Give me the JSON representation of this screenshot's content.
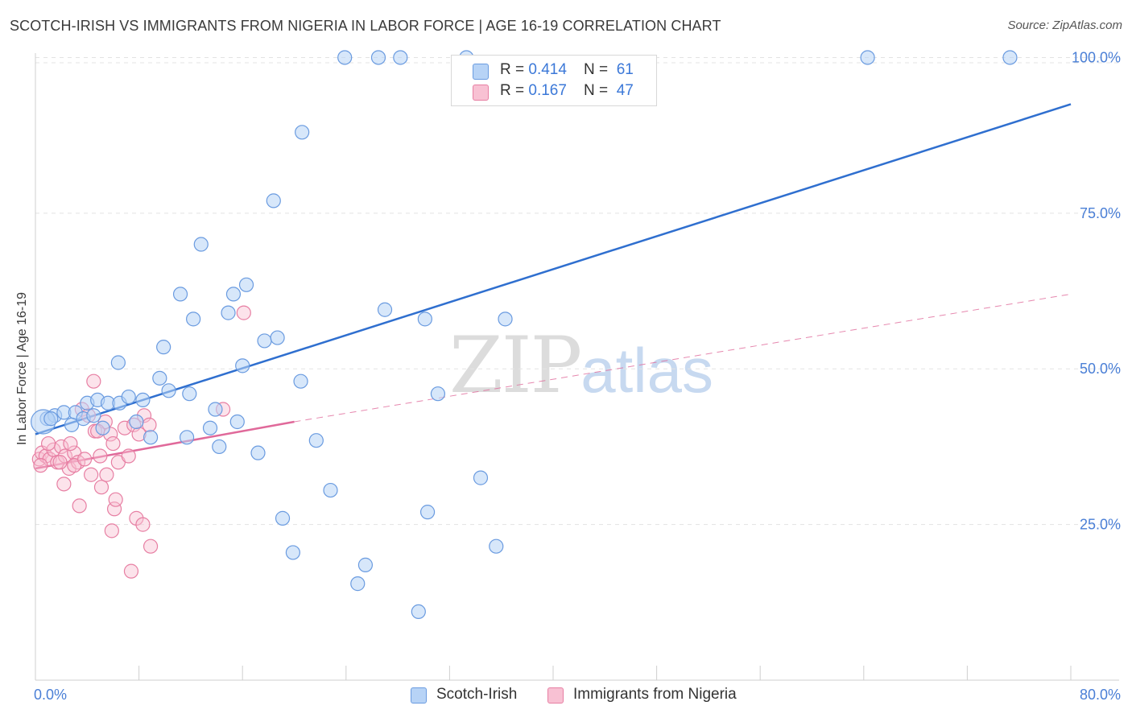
{
  "title": "SCOTCH-IRISH VS IMMIGRANTS FROM NIGERIA IN LABOR FORCE | AGE 16-19 CORRELATION CHART",
  "source": "Source: ZipAtlas.com",
  "watermark": {
    "zip": "ZIP",
    "atlas": "atlas"
  },
  "legend_top": {
    "rows": [
      {
        "r_label": "R = ",
        "r_value": "0.414",
        "n_label": "N = ",
        "n_value": "61"
      },
      {
        "r_label": "R = ",
        "r_value": "0.167",
        "n_label": "N = ",
        "n_value": "47"
      }
    ]
  },
  "colors": {
    "blue_fill": "#b7d3f6",
    "blue_stroke": "#6a9be0",
    "blue_line": "#2f6fcf",
    "pink_fill": "#f8c1d3",
    "pink_stroke": "#e77fa3",
    "pink_line": "#e0699a",
    "tick_text": "#4a7fd6",
    "grid": "#e3e3e3"
  },
  "chart_data": {
    "type": "scatter",
    "title": "SCOTCH-IRISH VS IMMIGRANTS FROM NIGERIA IN LABOR FORCE | AGE 16-19 CORRELATION CHART",
    "xlabel": "",
    "ylabel": "In Labor Force | Age 16-19",
    "xlim": [
      0,
      80
    ],
    "ylim": [
      0,
      102
    ],
    "x_tick_labels": [
      "0.0%",
      "80.0%"
    ],
    "y_ticks": [
      25,
      50,
      75,
      100
    ],
    "y_tick_labels": [
      "25.0%",
      "50.0%",
      "75.0%",
      "100.0%"
    ],
    "legend": [
      "Scotch-Irish",
      "Immigrants from Nigeria"
    ],
    "series": [
      {
        "name": "Scotch-Irish",
        "r": 0.414,
        "n": 61,
        "trend": {
          "x0": 0,
          "y0": 39.5,
          "x1": 80,
          "y1": 92.5
        },
        "points": [
          [
            0.9,
            42.0
          ],
          [
            1.5,
            42.5
          ],
          [
            2.2,
            43.0
          ],
          [
            3.1,
            43.0
          ],
          [
            4.0,
            44.5
          ],
          [
            4.8,
            45.0
          ],
          [
            5.6,
            44.5
          ],
          [
            6.5,
            44.5
          ],
          [
            7.2,
            45.5
          ],
          [
            8.3,
            45.0
          ],
          [
            2.8,
            41.0
          ],
          [
            3.7,
            42.0
          ],
          [
            4.5,
            42.5
          ],
          [
            5.2,
            40.5
          ],
          [
            7.8,
            41.5
          ],
          [
            9.6,
            48.5
          ],
          [
            10.3,
            46.5
          ],
          [
            11.9,
            46.0
          ],
          [
            6.4,
            51.0
          ],
          [
            9.9,
            53.5
          ],
          [
            11.7,
            39.0
          ],
          [
            8.9,
            39.0
          ],
          [
            13.5,
            40.5
          ],
          [
            13.9,
            43.5
          ],
          [
            15.6,
            41.5
          ],
          [
            14.2,
            37.5
          ],
          [
            17.2,
            36.5
          ],
          [
            16.0,
            50.5
          ],
          [
            17.7,
            54.5
          ],
          [
            18.7,
            55.0
          ],
          [
            14.9,
            59.0
          ],
          [
            15.3,
            62.0
          ],
          [
            16.3,
            63.5
          ],
          [
            12.2,
            58.0
          ],
          [
            11.2,
            62.0
          ],
          [
            12.8,
            70.0
          ],
          [
            18.4,
            77.0
          ],
          [
            20.6,
            88.0
          ],
          [
            20.5,
            48.0
          ],
          [
            21.7,
            38.5
          ],
          [
            22.8,
            30.5
          ],
          [
            19.1,
            26.0
          ],
          [
            19.9,
            20.5
          ],
          [
            25.5,
            18.5
          ],
          [
            24.9,
            15.5
          ],
          [
            29.6,
            11.0
          ],
          [
            30.3,
            27.0
          ],
          [
            34.4,
            32.5
          ],
          [
            35.6,
            21.5
          ],
          [
            27.0,
            59.5
          ],
          [
            30.1,
            58.0
          ],
          [
            31.1,
            46.0
          ],
          [
            36.3,
            58.0
          ],
          [
            23.9,
            100.0
          ],
          [
            26.5,
            100.0
          ],
          [
            28.2,
            100.0
          ],
          [
            33.3,
            100.0
          ],
          [
            64.3,
            100.0
          ],
          [
            75.3,
            100.0
          ],
          [
            0.6,
            41.5
          ],
          [
            1.2,
            42.0
          ]
        ]
      },
      {
        "name": "Immigrants from Nigeria",
        "r": 0.167,
        "n": 47,
        "trend": {
          "x0": 0,
          "y0": 34.0,
          "x1": 20,
          "y1": 41.5,
          "dash_x1": 80,
          "dash_y1": 62.0
        },
        "points": [
          [
            0.3,
            35.5
          ],
          [
            0.5,
            36.5
          ],
          [
            0.8,
            36.0
          ],
          [
            1.1,
            35.5
          ],
          [
            1.4,
            37.0
          ],
          [
            0.4,
            34.5
          ],
          [
            1.7,
            35.0
          ],
          [
            2.0,
            37.5
          ],
          [
            2.3,
            36.0
          ],
          [
            2.6,
            34.0
          ],
          [
            3.0,
            36.5
          ],
          [
            3.3,
            35.0
          ],
          [
            3.6,
            43.5
          ],
          [
            4.1,
            42.5
          ],
          [
            4.6,
            40.0
          ],
          [
            5.0,
            36.0
          ],
          [
            5.4,
            41.5
          ],
          [
            5.8,
            39.5
          ],
          [
            6.0,
            38.0
          ],
          [
            6.4,
            35.0
          ],
          [
            6.9,
            40.5
          ],
          [
            7.2,
            36.0
          ],
          [
            7.6,
            41.0
          ],
          [
            8.0,
            39.5
          ],
          [
            8.4,
            42.5
          ],
          [
            8.8,
            41.0
          ],
          [
            4.5,
            48.0
          ],
          [
            2.2,
            31.5
          ],
          [
            3.4,
            28.0
          ],
          [
            5.1,
            31.0
          ],
          [
            5.5,
            33.0
          ],
          [
            6.1,
            27.5
          ],
          [
            6.2,
            29.0
          ],
          [
            7.8,
            26.0
          ],
          [
            8.3,
            25.0
          ],
          [
            8.9,
            21.5
          ],
          [
            7.4,
            17.5
          ],
          [
            5.9,
            24.0
          ],
          [
            14.5,
            43.5
          ],
          [
            16.1,
            59.0
          ],
          [
            4.3,
            33.0
          ],
          [
            3.0,
            34.5
          ],
          [
            1.0,
            38.0
          ],
          [
            1.9,
            35.0
          ],
          [
            2.7,
            38.0
          ],
          [
            4.8,
            40.0
          ],
          [
            3.8,
            35.5
          ]
        ]
      }
    ]
  },
  "legend_bottom": {
    "items": [
      "Scotch-Irish",
      "Immigrants from Nigeria"
    ]
  }
}
